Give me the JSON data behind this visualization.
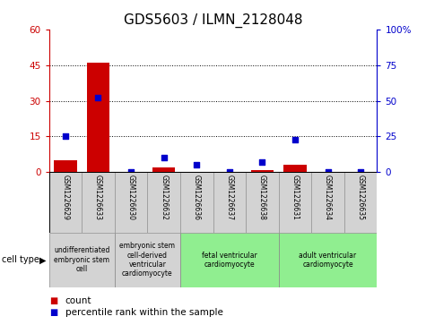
{
  "title": "GDS5603 / ILMN_2128048",
  "samples": [
    "GSM1226629",
    "GSM1226633",
    "GSM1226630",
    "GSM1226632",
    "GSM1226636",
    "GSM1226637",
    "GSM1226638",
    "GSM1226631",
    "GSM1226634",
    "GSM1226635"
  ],
  "counts": [
    5,
    46,
    0,
    2,
    0,
    0,
    1,
    3,
    0,
    0
  ],
  "percentiles": [
    25,
    52,
    0,
    10,
    5,
    0,
    7,
    23,
    0,
    0
  ],
  "ylim_left": [
    0,
    60
  ],
  "ylim_right": [
    0,
    100
  ],
  "yticks_left": [
    0,
    15,
    30,
    45,
    60
  ],
  "yticks_right": [
    0,
    25,
    50,
    75,
    100
  ],
  "ytick_labels_right": [
    "0",
    "25",
    "50",
    "75",
    "100%"
  ],
  "cell_type_groups": [
    {
      "label": "undifferentiated\nembryonic stem\ncell",
      "start": 0,
      "end": 2,
      "color": "#d3d3d3"
    },
    {
      "label": "embryonic stem\ncell-derived\nventricular\ncardiomyocyte",
      "start": 2,
      "end": 4,
      "color": "#d3d3d3"
    },
    {
      "label": "fetal ventricular\ncardiomyocyte",
      "start": 4,
      "end": 7,
      "color": "#90ee90"
    },
    {
      "label": "adult ventricular\ncardiomyocyte",
      "start": 7,
      "end": 10,
      "color": "#90ee90"
    }
  ],
  "bar_color": "#cc0000",
  "dot_color": "#0000cc",
  "grid_color": "#000000",
  "bg_color": "#ffffff",
  "sample_bg_color": "#d3d3d3",
  "cell_type_label": "cell type",
  "legend_count_label": "count",
  "legend_percentile_label": "percentile rank within the sample",
  "title_fontsize": 11,
  "tick_fontsize": 7.5,
  "axis_label_color_left": "#cc0000",
  "axis_label_color_right": "#0000cc"
}
